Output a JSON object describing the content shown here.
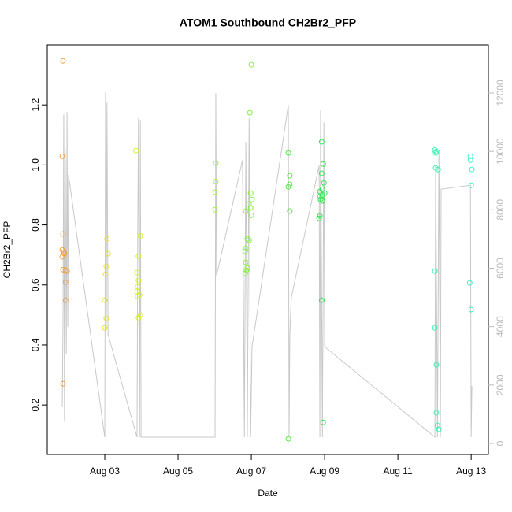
{
  "chart_data": {
    "type": "scatter",
    "title": "ATOM1 Southbound CH2Br2_PFP",
    "x_label": "Date",
    "y_label": "CH2Br2_PFP",
    "xlim": [
      1.43,
      13.47
    ],
    "xticks": [
      {
        "value": 3,
        "label": "Aug 03"
      },
      {
        "value": 5,
        "label": "Aug 05"
      },
      {
        "value": 7,
        "label": "Aug 07"
      },
      {
        "value": 9,
        "label": "Aug 09"
      },
      {
        "value": 11,
        "label": "Aug 11"
      },
      {
        "value": 13,
        "label": "Aug 13"
      }
    ],
    "ylim": [
      0.035,
      1.4
    ],
    "yticks": [
      0.2,
      0.4,
      0.6,
      {
        "value": 0.8,
        "label": "0.8"
      },
      {
        "value": 1,
        "label": "1.0"
      },
      1.2
    ],
    "y2lim": [
      -377,
      13644
    ],
    "y2ticks": [
      0,
      2000,
      4000,
      6000,
      8000,
      10000,
      12000
    ],
    "series": [
      {
        "color": "#f0a040",
        "x": [
          1.86,
          1.84,
          1.86,
          1.84,
          1.88,
          1.9,
          1.84,
          1.86,
          1.93,
          1.97,
          1.93,
          1.93,
          1.86
        ],
        "values": [
          1.347,
          1.029,
          0.77,
          0.717,
          0.709,
          0.704,
          0.694,
          0.651,
          0.649,
          0.646,
          0.609,
          0.549,
          0.271
        ]
      },
      {
        "color": "#e8e040",
        "x": [
          3.06,
          3.09,
          3.04,
          3.02,
          3.0,
          3.04,
          3.0
        ],
        "values": [
          0.754,
          0.704,
          0.662,
          0.636,
          0.549,
          0.489,
          0.457
        ]
      },
      {
        "color": "#d8f030",
        "x": [
          3.85,
          3.97,
          3.92,
          3.88,
          3.92,
          3.9,
          3.88,
          3.95,
          3.9,
          3.97,
          3.92
        ],
        "values": [
          1.048,
          0.764,
          0.696,
          0.641,
          0.615,
          0.594,
          0.578,
          0.567,
          0.562,
          0.499,
          0.491
        ]
      },
      {
        "color": "#a8f040",
        "x": [
          6.03,
          6.03,
          6.01,
          6.01
        ],
        "values": [
          1.006,
          0.945,
          0.909,
          0.851
        ]
      },
      {
        "color": "#88f040",
        "x": [
          7.0,
          6.96,
          6.98,
          7.02,
          6.94,
          6.98,
          6.85,
          7.0,
          6.89,
          6.94,
          6.85,
          6.83,
          6.85,
          6.89,
          6.87,
          6.83
        ],
        "values": [
          1.334,
          1.174,
          0.906,
          0.885,
          0.869,
          0.856,
          0.846,
          0.832,
          0.754,
          0.749,
          0.722,
          0.712,
          0.675,
          0.657,
          0.649,
          0.638
        ]
      },
      {
        "color": "#50e840",
        "x": [
          8.01,
          8.05,
          8.05,
          8.01,
          8.05,
          8.01
        ],
        "values": [
          1.04,
          0.964,
          0.935,
          0.927,
          0.846,
          0.087
        ]
      },
      {
        "color": "#30e850",
        "x": [
          8.92,
          8.96,
          8.92,
          8.98,
          8.94,
          8.87,
          9.0,
          8.94,
          8.87,
          8.89,
          8.94,
          8.87,
          8.85,
          8.92,
          8.96
        ],
        "values": [
          1.077,
          1.003,
          0.972,
          0.94,
          0.919,
          0.911,
          0.906,
          0.9,
          0.895,
          0.885,
          0.88,
          0.83,
          0.822,
          0.549,
          0.142
        ]
      },
      {
        "color": "#40f0b0",
        "x": [
          12.01,
          12.05,
          12.03,
          12.03,
          12.1,
          12.01,
          12.01,
          12.05,
          12.05,
          12.08,
          12.12
        ],
        "values": [
          1.05,
          1.045,
          1.04,
          0.99,
          0.985,
          0.646,
          0.457,
          0.334,
          0.174,
          0.132,
          0.119
        ]
      },
      {
        "color": "#40f0c8",
        "x": [
          12.98,
          12.98,
          13.02,
          13.0,
          12.96,
          13.0
        ],
        "values": [
          1.029,
          1.016,
          0.985,
          0.932,
          0.607,
          0.518
        ]
      }
    ],
    "altitude": {
      "axis": "y2",
      "color": "#c8c8c8",
      "x": [
        1.84,
        1.86,
        1.88,
        1.9,
        1.92,
        1.95,
        1.97,
        1.99,
        2.01,
        3.0,
        3.02,
        3.04,
        3.06,
        3.09,
        3.88,
        3.9,
        3.92,
        3.95,
        3.97,
        3.99,
        6.01,
        6.03,
        6.05,
        6.76,
        6.81,
        6.85,
        6.89,
        6.94,
        6.98,
        7.02,
        8.01,
        8.03,
        8.05,
        8.09,
        8.85,
        8.87,
        8.89,
        8.94,
        8.98,
        9.0,
        12.01,
        12.03,
        12.08,
        12.12,
        12.16,
        12.18,
        12.98,
        13.0,
        13.02
      ],
      "values": [
        1240,
        4124,
        11265,
        755,
        10052,
        3045,
        11346,
        3989,
        9190,
        216,
        12020,
        3854,
        11669,
        3719,
        216,
        7357,
        11130,
        216,
        11076,
        216,
        216,
        11993,
        5740,
        9702,
        216,
        10322,
        216,
        11130,
        216,
        3315,
        11588,
        216,
        3719,
        4986,
        9513,
        216,
        11400,
        216,
        10996,
        3315,
        216,
        9513,
        216,
        10052,
        216,
        8705,
        8840,
        216,
        1967
      ]
    }
  }
}
